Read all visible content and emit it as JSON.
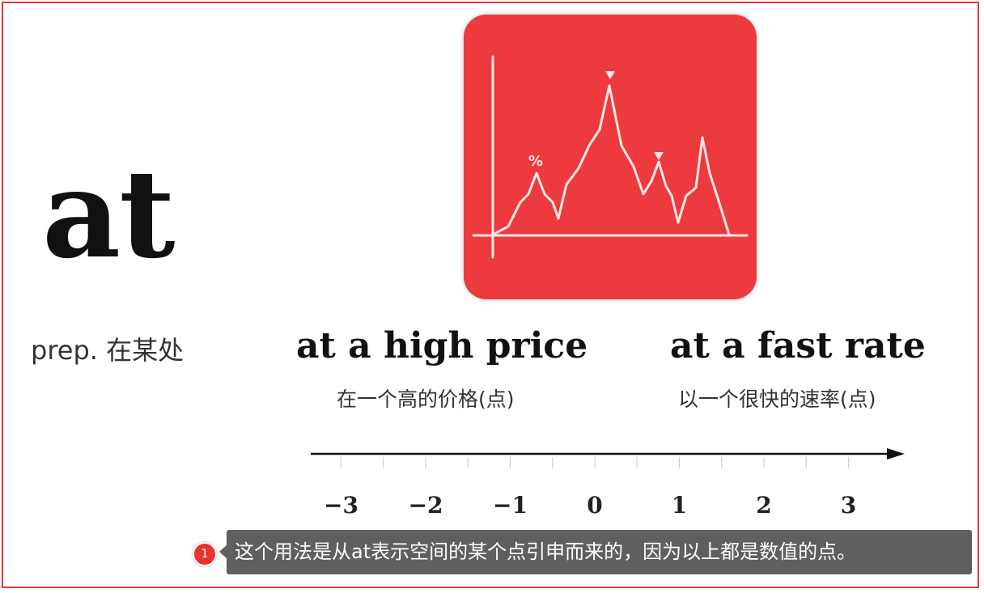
{
  "headword": "at",
  "part_of_speech": "prep. 在某处",
  "illustration": {
    "percent_label": "%",
    "icon_name": "price-line-chart-icon",
    "background_color": "#ec3a3e",
    "line_color": "#f7e7e4"
  },
  "examples": [
    {
      "phrase": "at a high price",
      "translation": "在一个高的价格(点)"
    },
    {
      "phrase": "at a fast rate",
      "translation": "以一个很快的速率(点)"
    }
  ],
  "number_line": {
    "labels": [
      "−3",
      "−2",
      "−1",
      "0",
      "1",
      "2",
      "3"
    ]
  },
  "note": {
    "badge": "1",
    "text": "这个用法是从at表示空间的某个点引申而来的，因为以上都是数值的点。"
  },
  "colors": {
    "accent_red": "#e03a3e",
    "note_bg": "#5f5f5f"
  }
}
